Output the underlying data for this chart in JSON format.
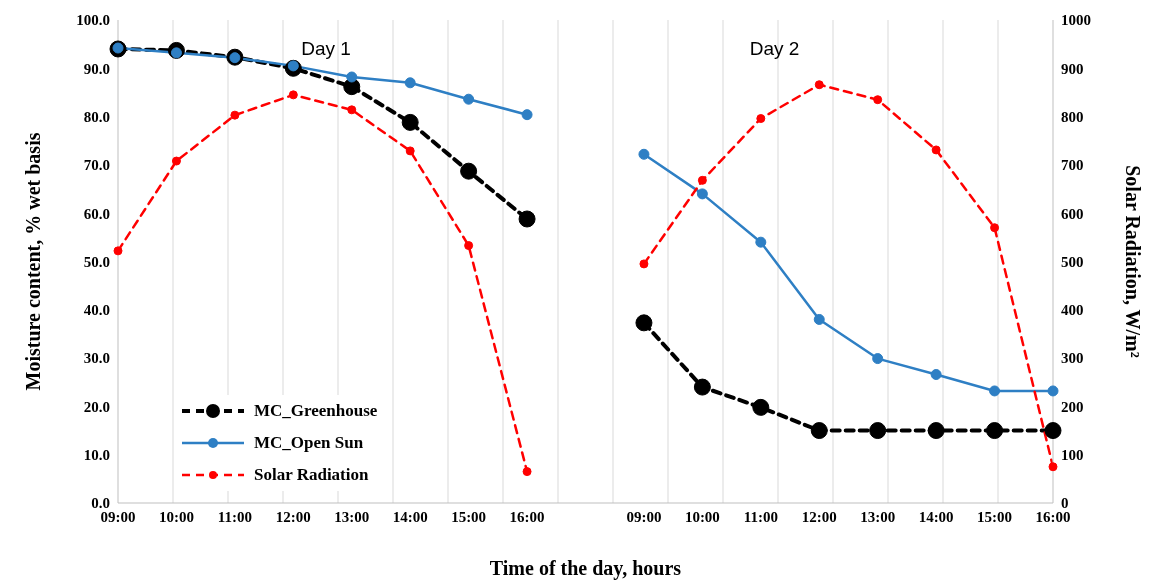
{
  "chart_data": {
    "type": "line",
    "xlabel": "Time of the day, hours",
    "ylabel": "Moisture content, % wet basis",
    "y2label": "Solar Radiation, W/m²",
    "annotations": [
      "Day 1",
      "Day 2"
    ],
    "categories": [
      "09:00",
      "10:00",
      "11:00",
      "12:00",
      "13:00",
      "14:00",
      "15:00",
      "16:00",
      null,
      "09:00",
      "10:00",
      "11:00",
      "12:00",
      "13:00",
      "14:00",
      "15:00",
      "16:00"
    ],
    "series": [
      {
        "name": "MC_Greenhouse",
        "color": "#000000",
        "marker": "circle",
        "line_style": "dashed",
        "values": [
          94.0,
          93.7,
          92.3,
          90.0,
          86.2,
          78.8,
          68.7,
          58.8,
          null,
          37.3,
          24.0,
          19.8,
          15.0,
          15.0,
          15.0,
          15.0,
          15.0
        ]
      },
      {
        "name": "MC_Open Sun",
        "color": "#2e7fc4",
        "marker": "circle",
        "line_style": "solid",
        "values": [
          94.2,
          93.2,
          92.2,
          90.5,
          88.2,
          87.0,
          83.6,
          80.4,
          null,
          72.2,
          64.0,
          54.0,
          38.0,
          29.9,
          26.6,
          23.2,
          23.2
        ]
      },
      {
        "name": "Solar Radiation",
        "color": "#ff0000",
        "marker": "circle",
        "line_style": "dashed",
        "axis": "y2",
        "values": [
          522,
          708,
          803,
          845,
          814,
          729,
          533,
          65,
          null,
          495,
          668,
          796,
          866,
          835,
          731,
          570,
          75
        ]
      }
    ],
    "ylim": [
      0,
      100
    ],
    "yticks": [
      {
        "value": 0,
        "label": "0.0"
      },
      {
        "value": 10,
        "label": "10.0"
      },
      {
        "value": 20,
        "label": "20.0"
      },
      {
        "value": 30,
        "label": "30.0"
      },
      {
        "value": 40,
        "label": "40.0"
      },
      {
        "value": 50,
        "label": "50.0"
      },
      {
        "value": 60,
        "label": "60.0"
      },
      {
        "value": 70,
        "label": "70.0"
      },
      {
        "value": 80,
        "label": "80.0"
      },
      {
        "value": 90,
        "label": "90.0"
      },
      {
        "value": 100,
        "label": "100.0"
      }
    ],
    "y2lim": [
      0,
      1000
    ],
    "y2ticks": [
      0,
      100,
      200,
      300,
      400,
      500,
      600,
      700,
      800,
      900,
      1000
    ],
    "grid": "x",
    "legend": "bottom left"
  }
}
